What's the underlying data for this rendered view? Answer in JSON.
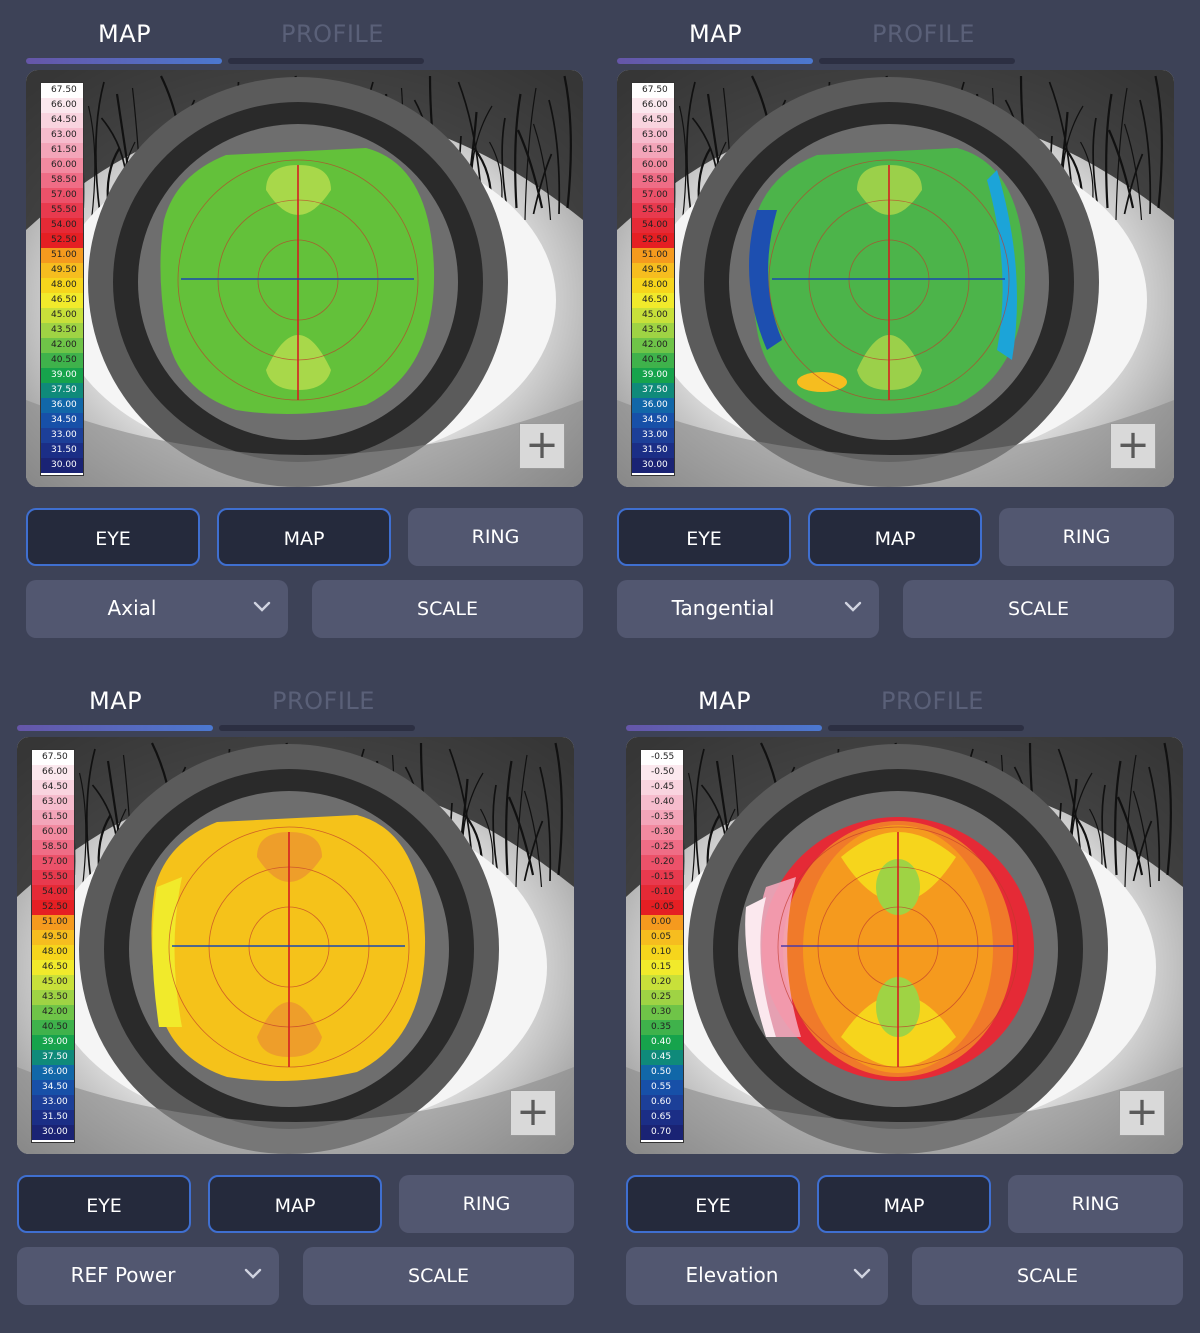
{
  "panels": [
    {
      "tabs": {
        "active": "MAP",
        "inactive": "PROFILE"
      },
      "map_type": "Axial",
      "buttons": {
        "eye": "EYE",
        "map": "MAP",
        "ring": "RING",
        "scale": "SCALE"
      },
      "zoom_icon": "plus-icon",
      "scale": [
        "67.50",
        "66.00",
        "64.50",
        "63.00",
        "61.50",
        "60.00",
        "58.50",
        "57.00",
        "55.50",
        "54.00",
        "52.50",
        "51.00",
        "49.50",
        "48.00",
        "46.50",
        "45.00",
        "43.50",
        "42.00",
        "40.50",
        "39.00",
        "37.50",
        "36.00",
        "34.50",
        "33.00",
        "31.50",
        "30.00"
      ],
      "colors": {
        "base": "#63c13a",
        "inner": "#a8d84a"
      }
    },
    {
      "tabs": {
        "active": "MAP",
        "inactive": "PROFILE"
      },
      "map_type": "Tangential",
      "buttons": {
        "eye": "EYE",
        "map": "MAP",
        "ring": "RING",
        "scale": "SCALE"
      },
      "zoom_icon": "plus-icon",
      "scale": [
        "67.50",
        "66.00",
        "64.50",
        "63.00",
        "61.50",
        "60.00",
        "58.50",
        "57.00",
        "55.50",
        "54.00",
        "52.50",
        "51.00",
        "49.50",
        "48.00",
        "46.50",
        "45.00",
        "43.50",
        "42.00",
        "40.50",
        "39.00",
        "37.50",
        "36.00",
        "34.50",
        "33.00",
        "31.50",
        "30.00"
      ],
      "colors": {
        "base": "#4cb44a",
        "inner": "#9bd04a"
      }
    },
    {
      "tabs": {
        "active": "MAP",
        "inactive": "PROFILE"
      },
      "map_type": "REF Power",
      "buttons": {
        "eye": "EYE",
        "map": "MAP",
        "ring": "RING",
        "scale": "SCALE"
      },
      "zoom_icon": "plus-icon",
      "scale": [
        "67.50",
        "66.00",
        "64.50",
        "63.00",
        "61.50",
        "60.00",
        "58.50",
        "57.00",
        "55.50",
        "54.00",
        "52.50",
        "51.00",
        "49.50",
        "48.00",
        "46.50",
        "45.00",
        "43.50",
        "42.00",
        "40.50",
        "39.00",
        "37.50",
        "36.00",
        "34.50",
        "33.00",
        "31.50",
        "30.00"
      ],
      "colors": {
        "base": "#f5c21a",
        "inner": "#ee9e2a"
      }
    },
    {
      "tabs": {
        "active": "MAP",
        "inactive": "PROFILE"
      },
      "map_type": "Elevation",
      "buttons": {
        "eye": "EYE",
        "map": "MAP",
        "ring": "RING",
        "scale": "SCALE"
      },
      "zoom_icon": "plus-icon",
      "scale": [
        "-0.55",
        "-0.50",
        "-0.45",
        "-0.40",
        "-0.35",
        "-0.30",
        "-0.25",
        "-0.20",
        "-0.15",
        "-0.10",
        "-0.05",
        "0.00",
        "0.05",
        "0.10",
        "0.15",
        "0.20",
        "0.25",
        "0.30",
        "0.35",
        "0.40",
        "0.45",
        "0.50",
        "0.55",
        "0.60",
        "0.65",
        "0.70"
      ],
      "colors": {
        "base": "#e8332a",
        "inner": "#f2c23a"
      }
    }
  ],
  "scale_colors": [
    "#ffffff",
    "#fbe8ee",
    "#f9d4df",
    "#f6bccd",
    "#f3a5b9",
    "#f28aa0",
    "#ef6d86",
    "#ec526a",
    "#e83a4e",
    "#e52a36",
    "#e51f23",
    "#f59a1e",
    "#f6bd1f",
    "#f6d51c",
    "#f1ea2b",
    "#c8e03a",
    "#9fd344",
    "#6fc448",
    "#3fb24b",
    "#16a34c",
    "#0f8a7a",
    "#1167a8",
    "#1750a8",
    "#1c3f98",
    "#1b2e86",
    "#1a2374"
  ],
  "elev_colors": [
    "#ffffff",
    "#fbe8ee",
    "#f9d4df",
    "#f6bccd",
    "#f3a5b9",
    "#f28aa0",
    "#ef6d86",
    "#ec526a",
    "#e83a4e",
    "#e52a36",
    "#e51f23",
    "#f59a1e",
    "#f6bd1f",
    "#f6d51c",
    "#f1ea2b",
    "#c8e03a",
    "#9fd344",
    "#6fc448",
    "#3fb24b",
    "#16a34c",
    "#0f8a7a",
    "#1167a8",
    "#1750a8",
    "#1c3f98",
    "#1b2e86",
    "#1a2374"
  ]
}
